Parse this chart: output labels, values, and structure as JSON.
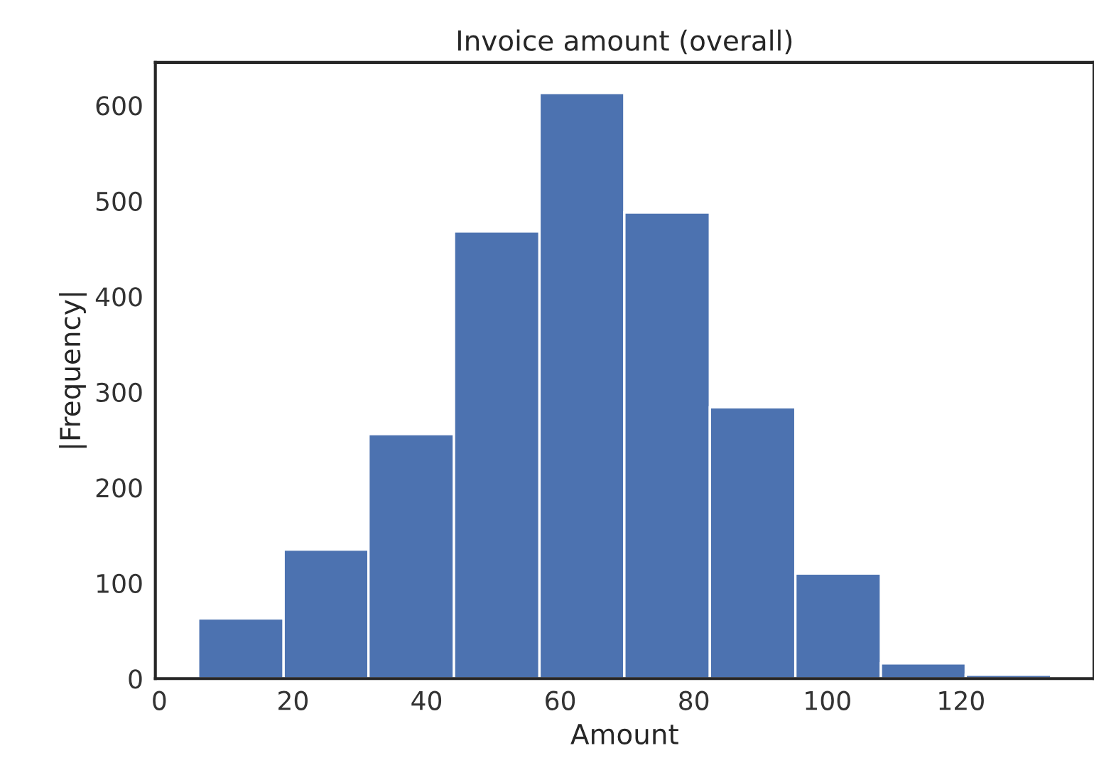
{
  "chart_data": {
    "type": "histogram",
    "title": "Invoice amount (overall)",
    "xlabel": "Amount",
    "ylabel": "|Frequency|",
    "bins": [
      5.8,
      18.6,
      31.3,
      44.1,
      56.9,
      69.6,
      82.4,
      95.2,
      108.0,
      120.7,
      133.5
    ],
    "values": [
      63,
      135,
      256,
      468,
      613,
      488,
      284,
      110,
      16,
      4
    ],
    "color": "#4c72b0",
    "xlim": [
      -0.6,
      139.9
    ],
    "xticks": [
      0,
      20,
      40,
      60,
      80,
      100,
      120
    ],
    "ylim": [
      0,
      645
    ],
    "yticks": [
      0,
      100,
      200,
      300,
      400,
      500,
      600
    ],
    "grid": false
  }
}
